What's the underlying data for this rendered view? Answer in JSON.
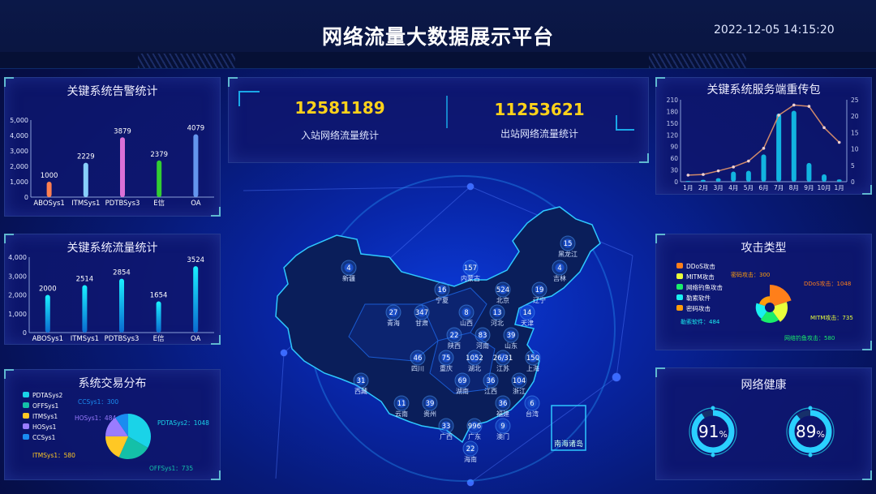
{
  "header": {
    "title": "网络流量大数据展示平台",
    "datetime": "2022-12-05 14:15:20"
  },
  "colors": {
    "accent_yellow": "#ffd21a",
    "panel_bg": "#0e166e",
    "bar_cyan": "#1ab3e0"
  },
  "summary": {
    "inbound": {
      "value": "12581189",
      "label": "入站网络流量统计"
    },
    "outbound": {
      "value": "11253621",
      "label": "出站网络流量统计"
    }
  },
  "alarm_chart": {
    "title": "关键系统告警统计",
    "chart_data": {
      "type": "bar",
      "categories": [
        "ABOSys1",
        "ITMSys1",
        "PDTBSys3",
        "E信",
        "OA"
      ],
      "values": [
        1000,
        2229,
        3879,
        2379,
        4079
      ],
      "colors": [
        "#ff7f50",
        "#87cefa",
        "#da70d6",
        "#32cd32",
        "#6495ed"
      ],
      "ylim": [
        0,
        5000
      ],
      "yticks": [
        "0",
        "1,000",
        "2,000",
        "3,000",
        "4,000",
        "5,000"
      ]
    }
  },
  "traffic_chart": {
    "title": "关键系统流量统计",
    "chart_data": {
      "type": "bar",
      "categories": [
        "ABOSys1",
        "ITMSys1",
        "PDTBSys3",
        "E信",
        "OA"
      ],
      "values": [
        2000,
        2514,
        2854,
        1654,
        3524
      ],
      "ylim": [
        0,
        4000
      ],
      "yticks": [
        "0",
        "1,000",
        "2,000",
        "3,000",
        "4,000"
      ]
    }
  },
  "trade_chart": {
    "title": "系统交易分布",
    "chart_data": {
      "type": "pie",
      "legend": [
        "PDTASys2",
        "OFFSys1",
        "ITMSys1",
        "HOSys1",
        "CCSys1"
      ],
      "values": [
        1048,
        735,
        580,
        484,
        300
      ],
      "colors": [
        "#1ad3e8",
        "#14c0a8",
        "#ffc824",
        "#9a7cff",
        "#1a8cf0"
      ],
      "labels": [
        "PDTASys2：1048",
        "OFFSys1：735",
        "ITMSys1：580",
        "HOSys1：484",
        "CCSys1：300"
      ]
    }
  },
  "retrans_chart": {
    "title": "关键系统服务端重传包",
    "chart_data": {
      "type": "bar+line",
      "categories": [
        "1月",
        "2月",
        "3月",
        "4月",
        "5月",
        "6月",
        "7月",
        "8月",
        "9月",
        "10月",
        "1月"
      ],
      "bars": [
        2,
        5,
        9,
        26,
        28,
        70,
        175,
        182,
        48,
        19,
        6
      ],
      "line": [
        2.0,
        2.2,
        3.3,
        4.5,
        6.3,
        10.2,
        20.3,
        23.4,
        23.0,
        16.5,
        12.0
      ],
      "ylim_left": [
        0,
        210
      ],
      "yticks_left": [
        "0",
        "30",
        "60",
        "90",
        "120",
        "150",
        "180",
        "210"
      ],
      "ylim_right": [
        0,
        25
      ],
      "yticks_right": [
        "0",
        "5",
        "10",
        "15",
        "20",
        "25"
      ]
    }
  },
  "attack_chart": {
    "title": "攻击类型",
    "chart_data": {
      "type": "rose-pie",
      "legend": [
        "DDoS攻击",
        "MITM攻击",
        "网络钓鱼攻击",
        "勒索软件",
        "密码攻击"
      ],
      "values": [
        1048,
        735,
        580,
        484,
        300
      ],
      "colors": [
        "#ff7f1a",
        "#eaff3a",
        "#1aee6a",
        "#1af0f0",
        "#ff9d0a"
      ],
      "labels": [
        "DDoS攻击：1048",
        "MITM攻击：735",
        "网络钓鱼攻击：580",
        "勒索软件：484",
        "密码攻击：300"
      ]
    }
  },
  "health": {
    "title": "网络健康",
    "gauges": [
      {
        "value": 91,
        "unit": "%"
      },
      {
        "value": 89,
        "unit": "%"
      }
    ]
  },
  "map": {
    "provinces": [
      {
        "name": "新疆",
        "value": "4"
      },
      {
        "name": "黑龙江",
        "value": "15"
      },
      {
        "name": "吉林",
        "value": "4"
      },
      {
        "name": "辽宁",
        "value": "19"
      },
      {
        "name": "内蒙古",
        "value": "157"
      },
      {
        "name": "北京",
        "value": "524"
      },
      {
        "name": "天津",
        "value": "14"
      },
      {
        "name": "宁夏",
        "value": "16"
      },
      {
        "name": "山西",
        "value": "8"
      },
      {
        "name": "河北",
        "value": "13"
      },
      {
        "name": "山东",
        "value": "39"
      },
      {
        "name": "青海",
        "value": "27"
      },
      {
        "name": "甘肃",
        "value": "347"
      },
      {
        "name": "陕西",
        "value": "22"
      },
      {
        "name": "河南",
        "value": "83"
      },
      {
        "name": "江苏",
        "value": "26/31"
      },
      {
        "name": "上海",
        "value": "150"
      },
      {
        "name": "四川",
        "value": "46"
      },
      {
        "name": "重庆",
        "value": "75"
      },
      {
        "name": "湖北",
        "value": "1052"
      },
      {
        "name": "浙江",
        "value": "104"
      },
      {
        "name": "西藏",
        "value": "31"
      },
      {
        "name": "湖南",
        "value": "69"
      },
      {
        "name": "江西",
        "value": "36"
      },
      {
        "name": "贵州",
        "value": "39"
      },
      {
        "name": "福建",
        "value": "36"
      },
      {
        "name": "云南",
        "value": "11"
      },
      {
        "name": "台湾",
        "value": "6"
      },
      {
        "name": "广西",
        "value": "33"
      },
      {
        "name": "广东",
        "value": "996"
      },
      {
        "name": "澳门",
        "value": "9"
      },
      {
        "name": "海南",
        "value": "22"
      }
    ],
    "inset_label": "南海诸岛"
  }
}
